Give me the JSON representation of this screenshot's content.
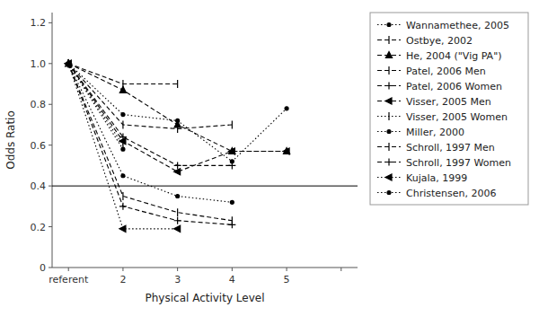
{
  "chart_data": {
    "type": "line",
    "xlabel": "Physical Activity Level",
    "ylabel": "Odds Ratio",
    "categories": [
      "referent",
      "2",
      "3",
      "4",
      "5",
      null
    ],
    "xlim": [
      -0.3,
      5.3
    ],
    "ylim": [
      0,
      1.25
    ],
    "yticks": [
      0,
      0.2,
      0.4,
      0.6,
      0.8,
      {
        "value": 1.0,
        "label": "1.0"
      },
      1.2
    ],
    "reference_line": 0.4,
    "legend": "right",
    "series": [
      {
        "name": "Wannamethee, 2005",
        "color": "black",
        "marker": "point",
        "line_style": "dotted",
        "values": [
          1.0,
          0.75,
          0.72,
          0.52,
          0.78,
          null
        ]
      },
      {
        "name": "Ostbye, 2002",
        "color": "black",
        "marker": "vline",
        "line_style": "dashed",
        "values": [
          1.0,
          0.9,
          0.9,
          null,
          null,
          null
        ]
      },
      {
        "name": "He, 2004 (\"Vig PA\")",
        "color": "black",
        "marker": "triangle-up",
        "line_style": "dashed",
        "values": [
          1.0,
          0.87,
          0.7,
          0.57,
          0.57,
          null
        ]
      },
      {
        "name": "Patel, 2006 Men",
        "color": "black",
        "marker": "vline",
        "line_style": "dashed",
        "values": [
          1.0,
          0.7,
          0.68,
          0.7,
          null,
          null
        ]
      },
      {
        "name": "Patel, 2006 Women",
        "color": "black",
        "marker": "plus",
        "line_style": "dashed",
        "values": [
          1.0,
          0.64,
          0.5,
          0.5,
          null,
          null
        ]
      },
      {
        "name": "Visser, 2005 Men",
        "color": "black",
        "marker": "triangle-left",
        "line_style": "dashed",
        "values": [
          1.0,
          0.62,
          0.47,
          0.57,
          0.57,
          null
        ]
      },
      {
        "name": "Visser, 2005 Women",
        "color": "black",
        "marker": "vline",
        "line_style": "dotted",
        "values": [
          1.0,
          0.6,
          null,
          null,
          null,
          null
        ]
      },
      {
        "name": "Miller, 2000",
        "color": "black",
        "marker": "point",
        "line_style": "dotted",
        "values": [
          1.0,
          0.58,
          null,
          null,
          null,
          null
        ]
      },
      {
        "name": "Schroll, 1997 Men",
        "color": "black",
        "marker": "vline",
        "line_style": "dashed",
        "values": [
          1.0,
          0.35,
          0.27,
          0.23,
          null,
          null
        ]
      },
      {
        "name": "Schroll, 1997 Women",
        "color": "black",
        "marker": "plus",
        "line_style": "dashed",
        "values": [
          1.0,
          0.3,
          0.23,
          0.21,
          null,
          null
        ]
      },
      {
        "name": "Kujala, 1999",
        "color": "black",
        "marker": "triangle-left",
        "line_style": "dotted",
        "values": [
          1.0,
          0.19,
          0.19,
          null,
          null,
          null
        ]
      },
      {
        "name": "Christensen, 2006",
        "color": "black",
        "marker": "point",
        "line_style": "dotted",
        "values": [
          1.0,
          0.45,
          0.35,
          0.32,
          null,
          null
        ]
      }
    ]
  }
}
